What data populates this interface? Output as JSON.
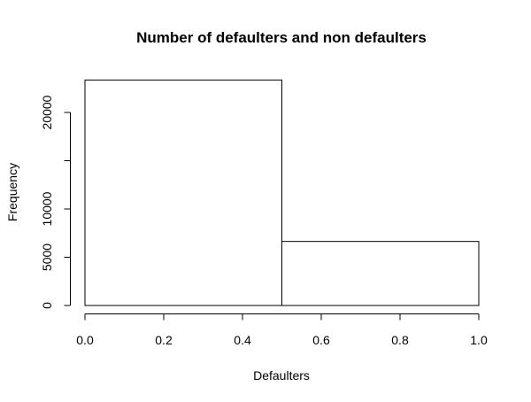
{
  "chart_data": {
    "type": "bar",
    "title": "Number of defaulters and non defaulters",
    "xlabel": "Defaulters",
    "ylabel": "Frequency",
    "bins": [
      {
        "start": 0.0,
        "end": 0.5,
        "value": 23364
      },
      {
        "start": 0.5,
        "end": 1.0,
        "value": 6636
      }
    ],
    "xlim": [
      0.0,
      1.0
    ],
    "ylim": [
      0,
      23364
    ],
    "x_ticks": [
      0.0,
      0.2,
      0.4,
      0.6,
      0.8,
      1.0
    ],
    "x_tick_labels": [
      "0.0",
      "0.2",
      "0.4",
      "0.6",
      "0.8",
      "1.0"
    ],
    "y_ticks": [
      0,
      5000,
      10000,
      15000,
      20000
    ],
    "y_tick_labels": [
      "0",
      "5000",
      "10000",
      "",
      "20000"
    ],
    "bar_fill": "#ffffff",
    "bar_stroke": "#000000",
    "grid": false
  }
}
